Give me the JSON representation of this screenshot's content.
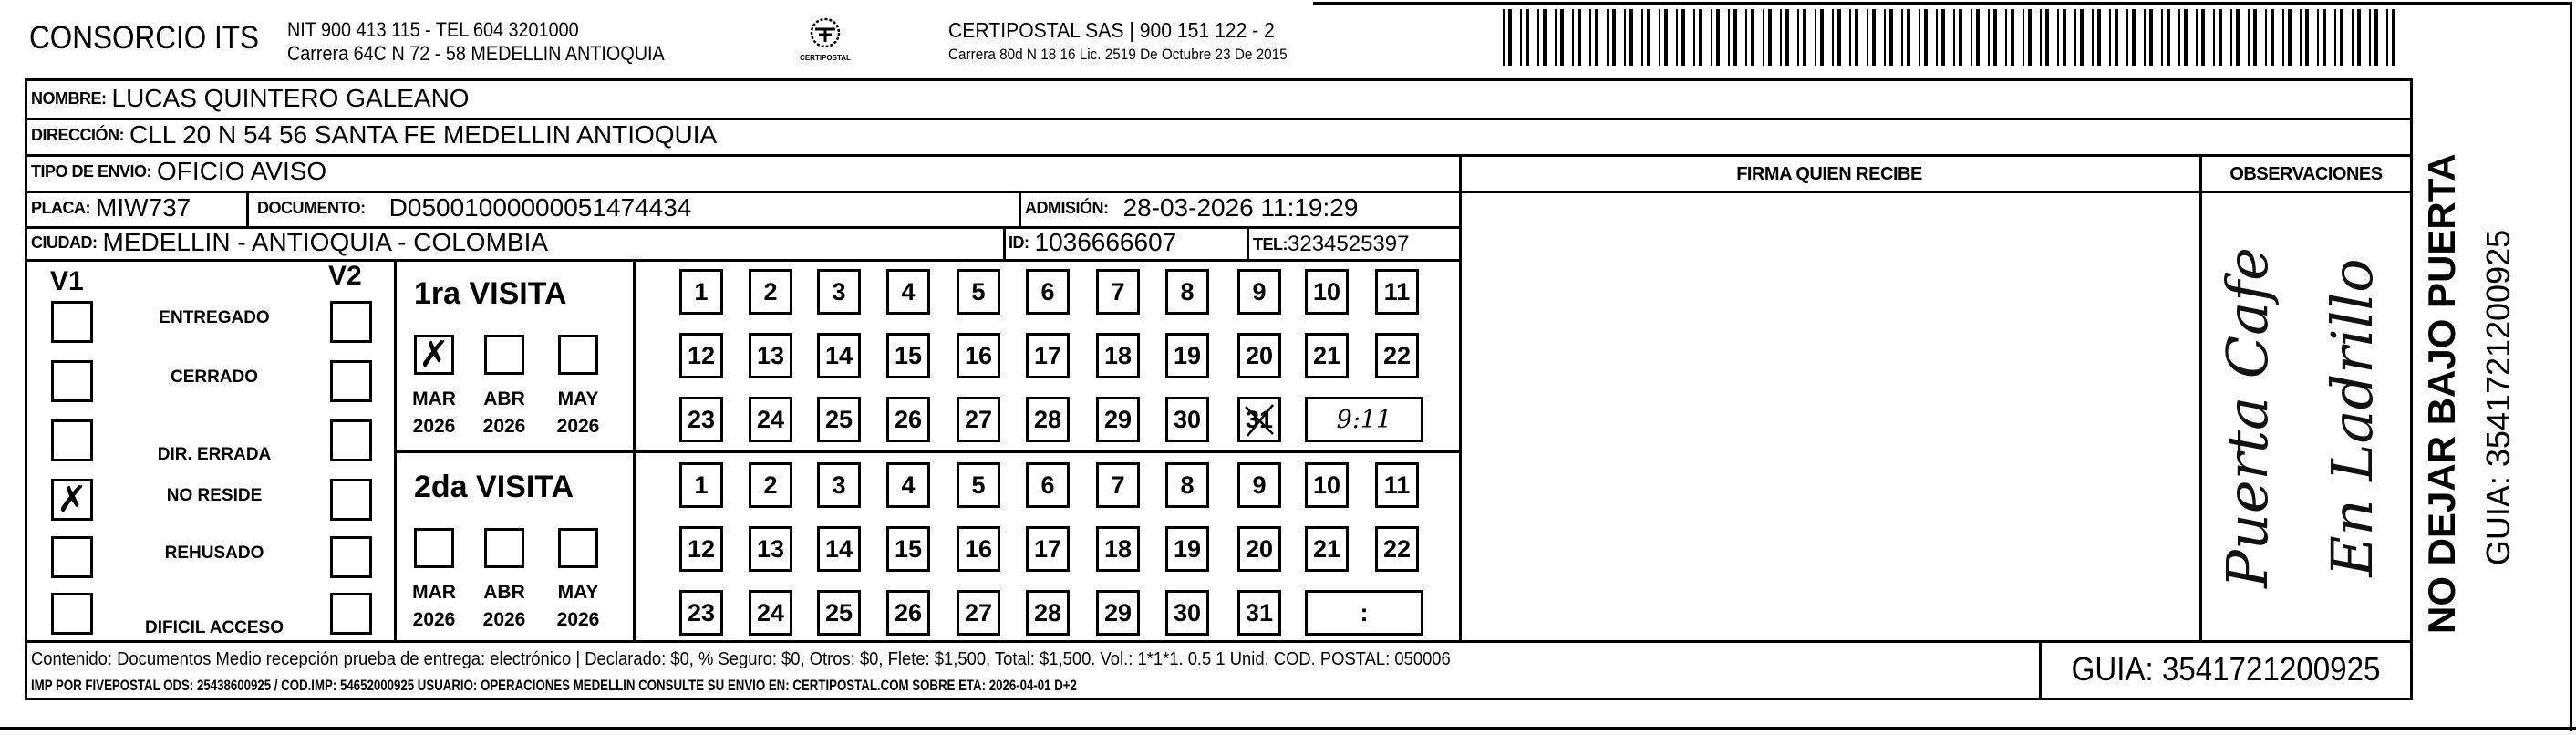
{
  "header": {
    "company": "CONSORCIO ITS",
    "company_nit": "NIT 900 413 115 - TEL 604 3201000",
    "company_address": "Carrera 64C N 72 - 58 MEDELLIN ANTIOQUIA",
    "logo_text": "CERTIPOSTAL",
    "carrier": "CERTIPOSTAL SAS | 900 151 122 - 2",
    "carrier_address": "Carrera 80d N 18 16  Lic. 2519 De Octubre 23 De 2015",
    "barcode_value": "3541721200925"
  },
  "recipient": {
    "nombre_label": "NOMBRE:",
    "nombre": "LUCAS QUINTERO GALEANO",
    "direccion_label": "DIRECCIÓN:",
    "direccion": "CLL 20 N 54  56 SANTA FE  MEDELLIN ANTIOQUIA",
    "tipo_label": "TIPO DE ENVIO:",
    "tipo": "OFICIO AVISO",
    "placa_label": "PLACA:",
    "placa": "MIW737",
    "documento_label": "DOCUMENTO:",
    "documento": "D05001000000051474434",
    "admision_label": "ADMISIÓN:",
    "admision": "28-03-2026 11:19:29",
    "ciudad_label": "CIUDAD:",
    "ciudad": "MEDELLIN - ANTIOQUIA - COLOMBIA",
    "id_label": "ID:",
    "id": "1036666607",
    "tel_label": "TEL:",
    "tel": "3234525397"
  },
  "signature": {
    "header": "FIRMA QUIEN RECIBE"
  },
  "observaciones": {
    "header": "OBSERVACIONES",
    "note_line1": "Puerta Cafe",
    "note_line2": "En Ladrillo"
  },
  "status": {
    "v1_label": "V1",
    "v2_label": "V2",
    "options": [
      {
        "label": "ENTREGADO",
        "v1": false,
        "v2": false
      },
      {
        "label": "CERRADO",
        "v1": false,
        "v2": false
      },
      {
        "label": "DIR. ERRADA",
        "v1": false,
        "v2": false
      },
      {
        "label": "NO RESIDE",
        "v1": true,
        "v2": false
      },
      {
        "label": "REHUSADO",
        "v1": false,
        "v2": false
      },
      {
        "label": "DIFICIL ACCESO",
        "v1": false,
        "v2": false
      }
    ]
  },
  "visits": [
    {
      "title": "1ra VISITA",
      "months": [
        {
          "m": "MAR",
          "y": "2026",
          "checked": true
        },
        {
          "m": "ABR",
          "y": "2026",
          "checked": false
        },
        {
          "m": "MAY",
          "y": "2026",
          "checked": false
        }
      ],
      "marked_day": 31,
      "time": "9:11"
    },
    {
      "title": "2da VISITA",
      "months": [
        {
          "m": "MAR",
          "y": "2026",
          "checked": false
        },
        {
          "m": "ABR",
          "y": "2026",
          "checked": false
        },
        {
          "m": "MAY",
          "y": "2026",
          "checked": false
        }
      ],
      "marked_day": null,
      "time": ":"
    }
  ],
  "footer": {
    "line1": "Contenido: Documentos Medio recepción prueba de entrega: electrónico | Declarado: $0, % Seguro: $0, Otros: $0, Flete: $1,500, Total: $1,500. Vol.: 1*1*1. 0.5  1 Unid. COD. POSTAL: 050006",
    "line2": "IMP POR FIVEPOSTAL ODS: 25438600925 / COD.IMP: 54652000925 USUARIO: OPERACIONES MEDELLIN CONSULTE SU ENVIO EN: CERTIPOSTAL.COM SOBRE ETA: 2026-04-01 D+2",
    "guia": "GUIA: 3541721200925"
  },
  "side": {
    "warning": "NO DEJAR BAJO PUERTA",
    "guia": "GUIA: 3541721200925"
  }
}
